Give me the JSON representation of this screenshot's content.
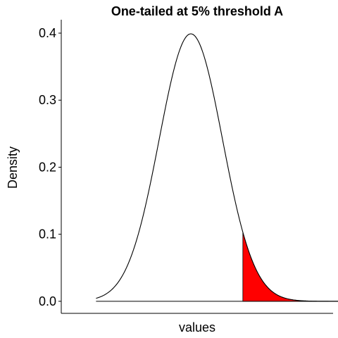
{
  "chart_data": {
    "type": "area",
    "title": "One-tailed at 5% threshold A",
    "xlabel": "values",
    "ylabel": "Density",
    "xlim": [
      -4.1,
      4.5
    ],
    "ylim": [
      -0.018,
      0.42
    ],
    "y_ticks": [
      0.0,
      0.1,
      0.2,
      0.3,
      0.4
    ],
    "y_tick_labels": [
      "0.0",
      "0.1",
      "0.2",
      "0.3",
      "0.4"
    ],
    "x_ticks_visible": false,
    "grid": false,
    "legend": "none",
    "series": [
      {
        "kind": "density-curve",
        "distribution": "normal",
        "mean": 0,
        "sd": 1,
        "x_range": [
          -3,
          5
        ],
        "line_color": "#000000"
      },
      {
        "kind": "shaded-tail",
        "from_x": 1.645,
        "to_x": 5,
        "fill_color": "#ff0000",
        "outline_color": "#000000"
      }
    ],
    "baseline_color": "#000000"
  }
}
